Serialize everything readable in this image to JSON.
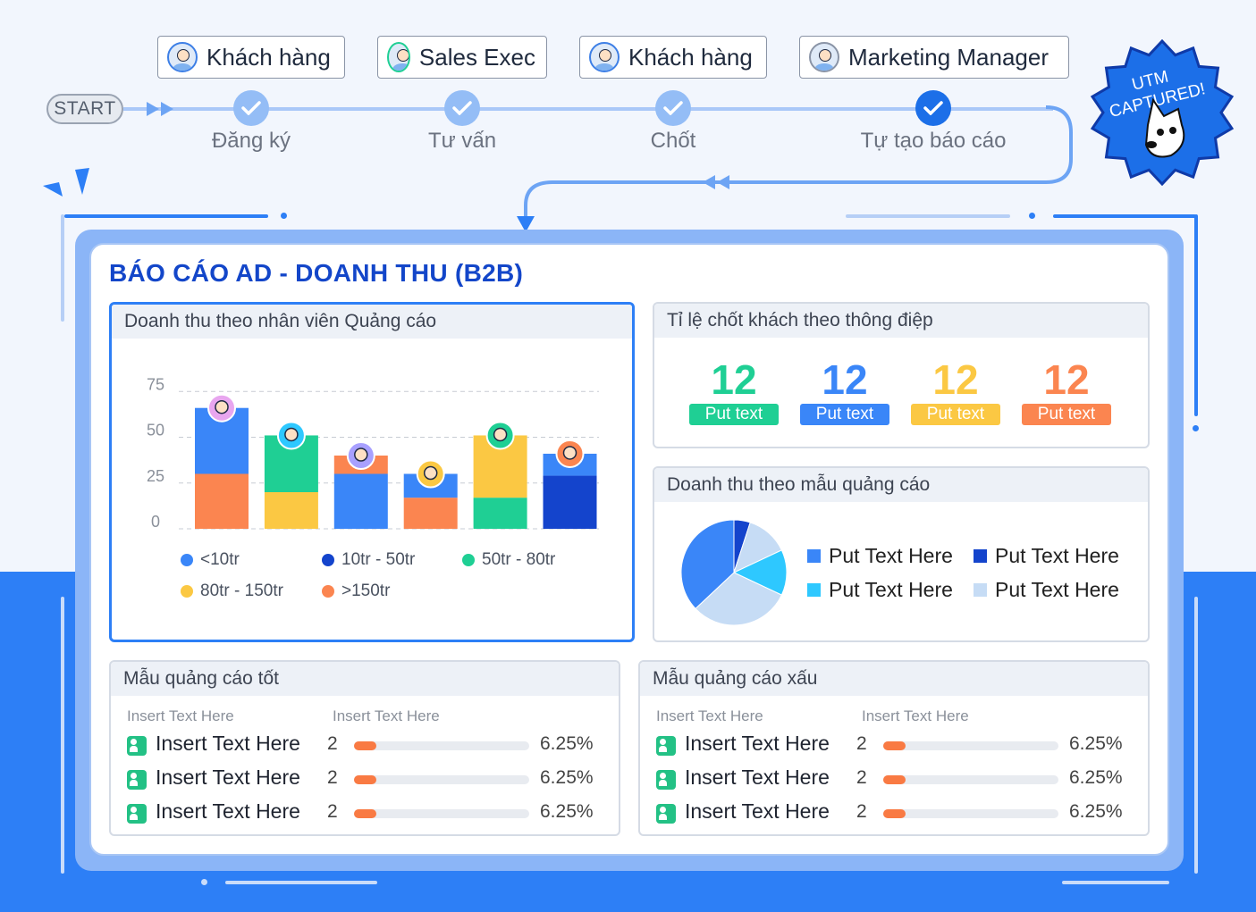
{
  "flow": {
    "start_label": "START",
    "roles": [
      "Khách hàng",
      "Sales Exec",
      "Khách hàng",
      "Marketing Manager"
    ],
    "steps": [
      "Đăng ký",
      "Tư vấn",
      "Chốt",
      "Tự tạo báo cáo"
    ]
  },
  "badge": {
    "line1": "UTM",
    "line2": "CAPTURED!"
  },
  "report": {
    "title": "BÁO CÁO AD - DOANH THU (B2B)"
  },
  "colors": {
    "blue": "#3a86f8",
    "dark_blue": "#1444cc",
    "green": "#1fcf94",
    "yellow": "#fbc843",
    "orange": "#fb8550",
    "cyan": "#2ec8ff",
    "light_blue": "#c6dcf5"
  },
  "revenue_panel": {
    "title": "Doanh thu theo nhân viên Quảng cáo",
    "legend": [
      "<10tr",
      "10tr - 50tr",
      "50tr - 80tr",
      "80tr - 150tr",
      ">150tr"
    ]
  },
  "chart_data": {
    "type": "bar",
    "stacked": true,
    "categories": [
      "",
      "",
      "",
      "",
      "",
      ""
    ],
    "yticks": [
      0,
      25,
      50,
      75
    ],
    "ylim": [
      0,
      80
    ],
    "grid": true,
    "series": [
      {
        "name": ">150tr",
        "color": "#fb8550",
        "values": [
          30,
          0,
          0,
          17,
          0,
          0
        ]
      },
      {
        "name": "80tr - 150tr",
        "color": "#fbc843",
        "values": [
          0,
          20,
          0,
          0,
          0,
          0
        ]
      },
      {
        "name": "50tr - 80tr",
        "color": "#1fcf94",
        "values": [
          0,
          31,
          0,
          0,
          17,
          0
        ]
      },
      {
        "name": "10tr - 50tr",
        "color": "#1444cc",
        "values": [
          0,
          0,
          0,
          0,
          0,
          29
        ]
      },
      {
        "name": "<10tr",
        "color": "#3a86f8",
        "values": [
          36,
          0,
          30,
          13,
          0,
          0
        ]
      },
      {
        "name": "80tr - 150tr ",
        "color": "#fbc843",
        "values": [
          0,
          0,
          0,
          0,
          34,
          0
        ]
      },
      {
        "name": ">150tr ",
        "color": "#fb8550",
        "values": [
          0,
          0,
          10,
          0,
          0,
          0
        ]
      },
      {
        "name": "<10tr ",
        "color": "#3a86f8",
        "values": [
          0,
          0,
          0,
          0,
          0,
          12
        ]
      }
    ]
  },
  "rate_panel": {
    "title": "Tỉ lệ chốt khách theo thông điệp",
    "metrics": [
      {
        "value": "12",
        "label": "Put text",
        "color": "#1fcf94"
      },
      {
        "value": "12",
        "label": "Put text",
        "color": "#3a86f8"
      },
      {
        "value": "12",
        "label": "Put text",
        "color": "#fbc843"
      },
      {
        "value": "12",
        "label": "Put text",
        "color": "#fb8550"
      }
    ]
  },
  "pie_panel": {
    "title": "Doanh thu theo mẫu quảng cáo",
    "legend": [
      "Put Text Here",
      "Put Text Here",
      "Put Text Here",
      "Put Text Here"
    ]
  },
  "pie_data": {
    "type": "pie",
    "slices": [
      {
        "value": 5,
        "color": "#1444cc"
      },
      {
        "value": 13,
        "color": "#c6dcf5"
      },
      {
        "value": 14,
        "color": "#2ec8ff"
      },
      {
        "value": 31,
        "color": "#c6dcf5"
      },
      {
        "value": 37,
        "color": "#3a86f8"
      }
    ]
  },
  "good_panel": {
    "title": "Mẫu quảng cáo tốt",
    "col1": "Insert Text Here",
    "col2": "Insert Text Here",
    "rows": [
      {
        "name": "Insert Text Here",
        "count": "2",
        "pct": "6.25%",
        "fill": 0.125
      },
      {
        "name": "Insert Text Here",
        "count": "2",
        "pct": "6.25%",
        "fill": 0.125
      },
      {
        "name": "Insert Text Here",
        "count": "2",
        "pct": "6.25%",
        "fill": 0.125
      }
    ]
  },
  "bad_panel": {
    "title": "Mẫu quảng cáo xấu",
    "col1": "Insert Text Here",
    "col2": "Insert Text Here",
    "rows": [
      {
        "name": "Insert Text Here",
        "count": "2",
        "pct": "6.25%",
        "fill": 0.125
      },
      {
        "name": "Insert Text Here",
        "count": "2",
        "pct": "6.25%",
        "fill": 0.125
      },
      {
        "name": "Insert Text Here",
        "count": "2",
        "pct": "6.25%",
        "fill": 0.125
      }
    ]
  }
}
